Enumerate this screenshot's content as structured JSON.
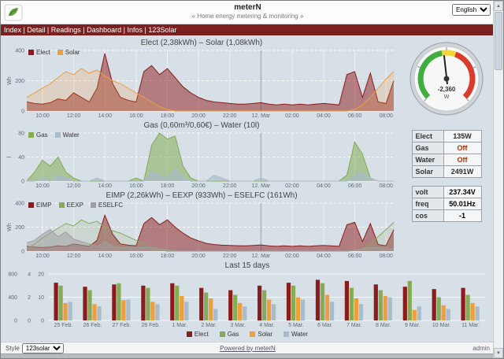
{
  "header": {
    "title": "meterN",
    "subtitle": "« Home energy metering & monitoring »"
  },
  "window": {
    "lang": "English"
  },
  "nav": {
    "items": [
      "Index",
      "Detail",
      "Readings",
      "Dashboard",
      "Infos",
      "123Solar"
    ]
  },
  "gauge": {
    "value": "-2,360",
    "unit": "W"
  },
  "status_table": {
    "rows": [
      {
        "label": "Elect",
        "value": "135W",
        "color": "#2e2e2e"
      },
      {
        "label": "Gas",
        "value": "Off",
        "color": "#b23000"
      },
      {
        "label": "Water",
        "value": "Off",
        "color": "#b23000"
      },
      {
        "label": "Solar",
        "value": "2491W",
        "color": "#2e2e2e"
      }
    ]
  },
  "meter_table": {
    "rows": [
      {
        "label": "volt",
        "value": "237.34V"
      },
      {
        "label": "freq",
        "value": "50.01Hz"
      },
      {
        "label": "cos",
        "value": "-1"
      }
    ]
  },
  "footer": {
    "style_label": "Style",
    "style_value": "123solar",
    "powered": "Powered by meterN",
    "admin": "admin"
  },
  "colors": {
    "nav_bg": "#7c1f1f",
    "elect": "#8c1c1c",
    "solar": "#f09d3c",
    "gas": "#85ab55",
    "water": "#a9bccb",
    "eselfc": "#9e9e9e",
    "gauge_green": "#3fae3f",
    "gauge_yellow": "#f2d63c",
    "gauge_red": "#d93a2b"
  },
  "chart_data": [
    {
      "type": "line",
      "title": "Elect (2,38kWh) – Solar (1,08kWh)",
      "ylabel": "Wh",
      "ymax": 400,
      "yticks": [
        0,
        200,
        400
      ],
      "xticks": [
        {
          "label": "10:00",
          "pos": 0.043
        },
        {
          "label": "12:00",
          "pos": 0.128
        },
        {
          "label": "14:00",
          "pos": 0.213
        },
        {
          "label": "16:00",
          "pos": 0.298
        },
        {
          "label": "18:00",
          "pos": 0.383
        },
        {
          "label": "20:00",
          "pos": 0.468
        },
        {
          "label": "22:00",
          "pos": 0.553
        },
        {
          "label": "12. Mar",
          "pos": 0.638,
          "major": true
        },
        {
          "label": "02:00",
          "pos": 0.723
        },
        {
          "label": "04:00",
          "pos": 0.809
        },
        {
          "label": "06:00",
          "pos": 0.894
        },
        {
          "label": "08:00",
          "pos": 0.979
        }
      ],
      "series": [
        {
          "name": "Elect",
          "color": "#8c1c1c",
          "fill": true,
          "fillOpacity": 0.5,
          "values": [
            60,
            50,
            45,
            55,
            80,
            70,
            120,
            90,
            60,
            150,
            380,
            180,
            90,
            70,
            60,
            260,
            300,
            240,
            280,
            220,
            160,
            120,
            90,
            70,
            60,
            55,
            50,
            45,
            45,
            50,
            55,
            45,
            40,
            45,
            40,
            45,
            40,
            45,
            50,
            45,
            40,
            240,
            260,
            90,
            250,
            60,
            50,
            200
          ]
        },
        {
          "name": "Solar",
          "color": "#f09d3c",
          "fill": true,
          "fillOpacity": 0.2,
          "values": [
            90,
            120,
            150,
            180,
            220,
            260,
            240,
            280,
            250,
            270,
            230,
            200,
            180,
            150,
            120,
            90,
            60,
            30,
            10,
            0,
            0,
            0,
            0,
            0,
            0,
            0,
            0,
            0,
            0,
            0,
            0,
            0,
            0,
            0,
            0,
            0,
            0,
            0,
            0,
            0,
            0,
            0,
            10,
            40,
            90,
            150,
            210,
            260
          ]
        }
      ]
    },
    {
      "type": "line",
      "title": "Gas (0,60m³/0,60€) – Water (10l)",
      "ylabel": "l",
      "ymax": 80,
      "yticks": [
        0,
        40,
        80
      ],
      "xticks": [
        {
          "label": "10:00",
          "pos": 0.043
        },
        {
          "label": "12:00",
          "pos": 0.128
        },
        {
          "label": "14:00",
          "pos": 0.213
        },
        {
          "label": "16:00",
          "pos": 0.298
        },
        {
          "label": "18:00",
          "pos": 0.383
        },
        {
          "label": "20:00",
          "pos": 0.468
        },
        {
          "label": "22:00",
          "pos": 0.553
        },
        {
          "label": "12. Mar",
          "pos": 0.638,
          "major": true
        },
        {
          "label": "02:00",
          "pos": 0.723
        },
        {
          "label": "04:00",
          "pos": 0.809
        },
        {
          "label": "06:00",
          "pos": 0.894
        },
        {
          "label": "08:00",
          "pos": 0.979
        }
      ],
      "series": [
        {
          "name": "Gas",
          "color": "#85ab55",
          "fill": true,
          "fillOpacity": 0.55,
          "values": [
            0,
            15,
            35,
            25,
            40,
            15,
            5,
            0,
            0,
            0,
            0,
            0,
            0,
            0,
            5,
            0,
            60,
            80,
            70,
            75,
            25,
            5,
            0,
            0,
            0,
            0,
            0,
            0,
            0,
            0,
            0,
            0,
            0,
            0,
            0,
            0,
            0,
            0,
            0,
            0,
            0,
            10,
            65,
            45,
            5,
            0,
            0,
            0
          ]
        },
        {
          "name": "Water",
          "color": "#a9bccb",
          "fill": true,
          "fillOpacity": 0.65,
          "values": [
            0,
            0,
            5,
            0,
            10,
            5,
            0,
            0,
            0,
            5,
            0,
            0,
            0,
            0,
            0,
            0,
            15,
            10,
            5,
            20,
            5,
            0,
            0,
            0,
            10,
            5,
            0,
            0,
            0,
            0,
            5,
            0,
            0,
            0,
            0,
            0,
            0,
            0,
            0,
            0,
            0,
            0,
            10,
            15,
            5,
            0,
            0,
            0
          ]
        }
      ]
    },
    {
      "type": "line",
      "title": "EIMP (2,26kWh) – EEXP (933Wh) – ESELFC (161Wh)",
      "ylabel": "Wh",
      "ymax": 400,
      "yticks": [
        0,
        200,
        400
      ],
      "xticks": [
        {
          "label": "10:00",
          "pos": 0.043
        },
        {
          "label": "12:00",
          "pos": 0.128
        },
        {
          "label": "14:00",
          "pos": 0.213
        },
        {
          "label": "16:00",
          "pos": 0.298
        },
        {
          "label": "18:00",
          "pos": 0.383
        },
        {
          "label": "20:00",
          "pos": 0.468
        },
        {
          "label": "22:00",
          "pos": 0.553
        },
        {
          "label": "12. Mar",
          "pos": 0.638,
          "major": true
        },
        {
          "label": "02:00",
          "pos": 0.723
        },
        {
          "label": "04:00",
          "pos": 0.809
        },
        {
          "label": "06:00",
          "pos": 0.894
        },
        {
          "label": "08:00",
          "pos": 0.979
        }
      ],
      "series": [
        {
          "name": "EIMP",
          "color": "#8c1c1c",
          "fill": true,
          "fillOpacity": 0.5,
          "values": [
            40,
            35,
            30,
            35,
            45,
            40,
            60,
            50,
            40,
            90,
            300,
            140,
            60,
            50,
            45,
            230,
            280,
            220,
            260,
            200,
            150,
            110,
            85,
            65,
            55,
            50,
            48,
            45,
            44,
            48,
            52,
            44,
            40,
            44,
            40,
            44,
            40,
            44,
            48,
            44,
            40,
            220,
            240,
            80,
            230,
            55,
            45,
            180
          ]
        },
        {
          "name": "EEXP",
          "color": "#85ab55",
          "fill": true,
          "fillOpacity": 0.15,
          "values": [
            20,
            60,
            110,
            150,
            190,
            230,
            210,
            260,
            230,
            250,
            200,
            170,
            150,
            120,
            90,
            60,
            30,
            10,
            0,
            0,
            0,
            0,
            0,
            0,
            0,
            0,
            0,
            0,
            0,
            0,
            0,
            0,
            0,
            0,
            0,
            0,
            0,
            0,
            0,
            0,
            0,
            0,
            5,
            20,
            60,
            120,
            180,
            240
          ]
        },
        {
          "name": "ESELFC",
          "color": "#9e9e9e",
          "fill": true,
          "fillOpacity": 0.5,
          "values": [
            70,
            90,
            140,
            180,
            120,
            160,
            100,
            80,
            60,
            40,
            80,
            40,
            30,
            30,
            30,
            30,
            30,
            20,
            10,
            0,
            0,
            0,
            0,
            0,
            0,
            0,
            0,
            0,
            0,
            0,
            0,
            0,
            0,
            0,
            0,
            0,
            0,
            0,
            0,
            0,
            0,
            0,
            5,
            20,
            30,
            30,
            20,
            20
          ]
        }
      ]
    },
    {
      "type": "bar",
      "title": "Last 15 days",
      "categories": [
        "25 Feb.",
        "26 Feb.",
        "27 Feb.",
        "28 Feb.",
        "1 Mar.",
        "2 Mar.",
        "3 Mar.",
        "4 Mar.",
        "5 Mar.",
        "6 Mar.",
        "7 Mar.",
        "8 Mar.",
        "9 Mar.",
        "10 Mar.",
        "11 Mar."
      ],
      "axes": [
        {
          "max": 800,
          "ticks": [
            800,
            400,
            0
          ]
        },
        {
          "max": 4,
          "ticks": [
            4,
            2,
            0
          ]
        },
        {
          "max": 20,
          "ticks": [
            20,
            10,
            0
          ]
        }
      ],
      "series": [
        {
          "name": "Elect",
          "color": "#8c1c1c",
          "axis": 0,
          "values": [
            650,
            580,
            620,
            600,
            640,
            560,
            520,
            600,
            650,
            700,
            680,
            620,
            580,
            540,
            560
          ]
        },
        {
          "name": "Gas",
          "color": "#85ab55",
          "axis": 1,
          "values": [
            3.0,
            2.6,
            3.2,
            2.8,
            3.0,
            2.4,
            2.2,
            2.6,
            3.0,
            3.2,
            2.8,
            2.6,
            3.4,
            2.0,
            2.2
          ]
        },
        {
          "name": "Solar",
          "color": "#f09d3c",
          "axis": 0,
          "values": [
            300,
            280,
            350,
            320,
            420,
            380,
            300,
            360,
            400,
            440,
            380,
            420,
            180,
            260,
            300
          ]
        },
        {
          "name": "Water",
          "color": "#a9bccb",
          "axis": 2,
          "values": [
            8,
            6,
            9,
            7,
            8,
            5,
            6,
            7,
            9,
            8,
            7,
            10,
            6,
            5,
            6
          ]
        }
      ]
    }
  ]
}
